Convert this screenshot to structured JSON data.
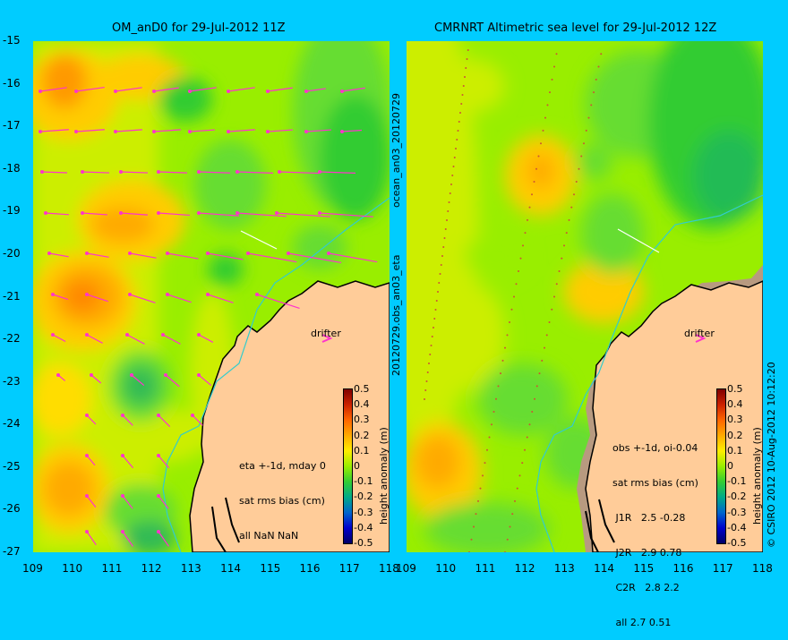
{
  "left_panel": {
    "title": "OM_anD0 for 29-Jul-2012 11Z",
    "note_lines": [
      "eta +-1d, mday 0",
      "sat rms bias (cm)",
      "all NaN NaN"
    ],
    "drifter_label": "drifter"
  },
  "right_panel": {
    "title": "CMRNRT Altimetric sea level  for 29-Jul-2012 12Z",
    "note_lines": [
      "obs +-1d, oi-0.04",
      "sat rms bias (cm)",
      " J1R   2.5 -0.28",
      " J2R   2.9 0.78",
      " C2R   2.8 2.2",
      " all 2.7 0.51"
    ],
    "drifter_label": "drifter"
  },
  "side_label_top": "ocean_an03_20120729",
  "side_label_bottom": "20120729.obs_an03_eta",
  "credit": "© CSIRO 2012  10-Aug-2012 10:12:20",
  "colorbar": {
    "label": "height anomaly (m)",
    "ticks": [
      "0.5",
      "0.4",
      "0.3",
      "0.2",
      "0.1",
      "0",
      "-0.1",
      "-0.2",
      "-0.3",
      "-0.4",
      "-0.5"
    ]
  },
  "chart_data": [
    {
      "type": "heatmap",
      "title": "OM_anD0 for 29-Jul-2012 11Z",
      "xlabel": "",
      "ylabel": "",
      "xlim": [
        109,
        118
      ],
      "ylim": [
        -27,
        -15
      ],
      "x_ticks": [
        "109",
        "110",
        "111",
        "112",
        "113",
        "114",
        "115",
        "116",
        "117",
        "118"
      ],
      "y_ticks": [
        "-15",
        "-16",
        "-17",
        "-18",
        "-19",
        "-20",
        "-21",
        "-22",
        "-23",
        "-24",
        "-25",
        "-26",
        "-27"
      ],
      "colorbar_range": [
        -0.5,
        0.5
      ],
      "velocity_arrows": true,
      "colors": {
        "land": "#ffcc99",
        "coast": "#000000",
        "arrows": "#ff33cc",
        "track": "#33cccc"
      }
    },
    {
      "type": "heatmap",
      "title": "CMRNRT Altimetric sea level  for 29-Jul-2012 12Z",
      "xlabel": "",
      "ylabel": "",
      "xlim": [
        109,
        118
      ],
      "ylim": [
        -27,
        -15
      ],
      "x_ticks": [
        "109",
        "110",
        "111",
        "112",
        "113",
        "114",
        "115",
        "116",
        "117",
        "118"
      ],
      "y_ticks": [],
      "colorbar_range": [
        -0.5,
        0.5
      ],
      "velocity_arrows": false,
      "colors": {
        "land": "#ffcc99",
        "coast": "#000000",
        "track": "#33cccc",
        "shelf": "#b89a80"
      }
    }
  ]
}
